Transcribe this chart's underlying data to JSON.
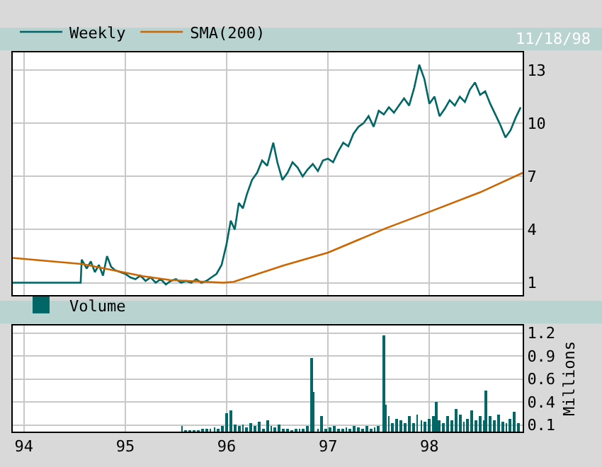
{
  "chart_data": [
    {
      "type": "line",
      "annotations": [
        "11/18/98"
      ],
      "legend": "top left",
      "grid": true,
      "tick_labels": "y",
      "xlim": [
        1993.89,
        1998.92
      ],
      "xticks": [
        {
          "value": 1994,
          "label": null
        },
        {
          "value": 1995,
          "label": null
        },
        {
          "value": 1996,
          "label": null
        },
        {
          "value": 1997,
          "label": null
        },
        {
          "value": 1998,
          "label": null
        }
      ],
      "ylim": [
        0.3,
        14
      ],
      "yticks": [
        1,
        4,
        7,
        10,
        13
      ],
      "series": [
        {
          "name": "Weekly",
          "color": "#006666",
          "x": [
            1993.89,
            1994.56,
            1994.57,
            1994.62,
            1994.66,
            1994.7,
            1994.74,
            1994.78,
            1994.82,
            1994.86,
            1994.9,
            1994.95,
            1995.0,
            1995.05,
            1995.1,
            1995.15,
            1995.2,
            1995.25,
            1995.3,
            1995.35,
            1995.4,
            1995.45,
            1995.5,
            1995.55,
            1995.6,
            1995.65,
            1995.7,
            1995.75,
            1995.8,
            1995.85,
            1995.9,
            1995.95,
            1996.0,
            1996.04,
            1996.08,
            1996.12,
            1996.16,
            1996.2,
            1996.25,
            1996.3,
            1996.35,
            1996.4,
            1996.46,
            1996.5,
            1996.55,
            1996.6,
            1996.65,
            1996.7,
            1996.75,
            1996.8,
            1996.85,
            1996.9,
            1996.95,
            1997.0,
            1997.05,
            1997.1,
            1997.15,
            1997.2,
            1997.25,
            1997.3,
            1997.35,
            1997.4,
            1997.45,
            1997.5,
            1997.55,
            1997.6,
            1997.65,
            1997.7,
            1997.75,
            1997.8,
            1997.85,
            1997.9,
            1997.95,
            1998.0,
            1998.05,
            1998.1,
            1998.15,
            1998.2,
            1998.25,
            1998.3,
            1998.35,
            1998.4,
            1998.45,
            1998.5,
            1998.55,
            1998.6,
            1998.65,
            1998.7,
            1998.75,
            1998.8,
            1998.85,
            1998.9
          ],
          "values": [
            1.0,
            1.0,
            2.3,
            1.8,
            2.2,
            1.6,
            2.0,
            1.4,
            2.5,
            1.9,
            1.7,
            1.6,
            1.5,
            1.3,
            1.2,
            1.4,
            1.1,
            1.3,
            1.0,
            1.2,
            0.9,
            1.1,
            1.2,
            1.0,
            1.1,
            1.0,
            1.2,
            1.0,
            1.1,
            1.3,
            1.5,
            2.0,
            3.2,
            4.5,
            4.0,
            5.5,
            5.2,
            6.0,
            6.8,
            7.2,
            7.9,
            7.6,
            8.9,
            7.8,
            6.8,
            7.2,
            7.8,
            7.5,
            7.0,
            7.4,
            7.7,
            7.3,
            7.9,
            8.0,
            7.8,
            8.4,
            8.9,
            8.7,
            9.4,
            9.8,
            10.0,
            10.4,
            9.8,
            10.7,
            10.5,
            10.9,
            10.6,
            11.0,
            11.4,
            11.0,
            12.0,
            13.3,
            12.5,
            11.1,
            11.5,
            10.4,
            10.8,
            11.3,
            11.0,
            11.5,
            11.2,
            11.9,
            12.3,
            11.6,
            11.8,
            11.1,
            10.5,
            9.9,
            9.2,
            9.6,
            10.3,
            10.9
          ]
        },
        {
          "name": "SMA(200)",
          "color": "#cc6600",
          "x": [
            1993.89,
            1994.58,
            1995.17,
            1995.44,
            1995.97,
            1996.07,
            1996.56,
            1997.0,
            1997.57,
            1998.0,
            1998.5,
            1998.92
          ],
          "values": [
            2.4,
            2.05,
            1.37,
            1.15,
            1.0,
            1.05,
            1.97,
            2.7,
            4.07,
            5.0,
            6.1,
            7.2
          ]
        }
      ]
    },
    {
      "type": "bar",
      "ylabel": "Millions",
      "legend": "top left",
      "grid": true,
      "xlim": [
        1993.89,
        1998.92
      ],
      "xticks": [
        {
          "value": 1994,
          "label": "94"
        },
        {
          "value": 1995,
          "label": "95"
        },
        {
          "value": 1996,
          "label": "96"
        },
        {
          "value": 1997,
          "label": "97"
        },
        {
          "value": 1998,
          "label": "98"
        }
      ],
      "ylim": [
        0.02,
        1.29
      ],
      "yticks": [
        0.1,
        {
          "value": 0.375,
          "label": "0.4"
        },
        {
          "value": 0.65,
          "label": "0.6"
        },
        {
          "value": 0.925,
          "label": "0.9"
        },
        1.2
      ],
      "series": [
        {
          "name": "Volume",
          "color": "#006666",
          "x": [
            1995.56,
            1995.6,
            1995.64,
            1995.68,
            1995.72,
            1995.76,
            1995.8,
            1995.84,
            1995.88,
            1995.92,
            1995.96,
            1996.0,
            1996.04,
            1996.08,
            1996.12,
            1996.16,
            1996.2,
            1996.24,
            1996.28,
            1996.32,
            1996.36,
            1996.4,
            1996.44,
            1996.48,
            1996.52,
            1996.56,
            1996.6,
            1996.64,
            1996.68,
            1996.72,
            1996.76,
            1996.8,
            1996.84,
            1996.86,
            1996.9,
            1996.94,
            1996.98,
            1997.02,
            1997.06,
            1997.1,
            1997.14,
            1997.18,
            1997.22,
            1997.26,
            1997.3,
            1997.34,
            1997.38,
            1997.42,
            1997.46,
            1997.5,
            1997.55,
            1997.57,
            1997.6,
            1997.64,
            1997.68,
            1997.72,
            1997.76,
            1997.8,
            1997.84,
            1997.88,
            1997.92,
            1997.96,
            1998.0,
            1998.04,
            1998.07,
            1998.1,
            1998.14,
            1998.18,
            1998.22,
            1998.26,
            1998.3,
            1998.34,
            1998.38,
            1998.42,
            1998.46,
            1998.5,
            1998.54,
            1998.56,
            1998.6,
            1998.64,
            1998.68,
            1998.72,
            1998.76,
            1998.8,
            1998.84,
            1998.88
          ],
          "values": [
            0.08,
            0.04,
            0.03,
            0.04,
            0.03,
            0.05,
            0.06,
            0.05,
            0.07,
            0.06,
            0.08,
            0.24,
            0.27,
            0.1,
            0.08,
            0.11,
            0.07,
            0.12,
            0.08,
            0.14,
            0.06,
            0.16,
            0.08,
            0.07,
            0.1,
            0.06,
            0.05,
            0.04,
            0.06,
            0.05,
            0.05,
            0.08,
            0.9,
            0.5,
            0.06,
            0.2,
            0.05,
            0.07,
            0.08,
            0.06,
            0.05,
            0.07,
            0.06,
            0.08,
            0.07,
            0.05,
            0.08,
            0.06,
            0.07,
            0.08,
            1.18,
            0.35,
            0.2,
            0.12,
            0.18,
            0.15,
            0.13,
            0.2,
            0.12,
            0.22,
            0.15,
            0.14,
            0.18,
            0.2,
            0.38,
            0.16,
            0.12,
            0.2,
            0.15,
            0.3,
            0.22,
            0.14,
            0.18,
            0.28,
            0.16,
            0.2,
            0.15,
            0.52,
            0.2,
            0.16,
            0.22,
            0.14,
            0.12,
            0.18,
            0.26,
            0.12
          ]
        }
      ]
    }
  ]
}
